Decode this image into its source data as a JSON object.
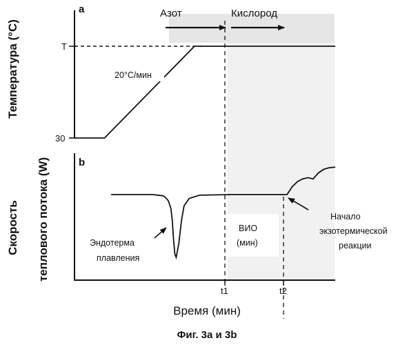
{
  "chart_data": [
    {
      "type": "line",
      "panel": "a",
      "ylabel": "Температура (°C)",
      "y_ticks": [
        "T",
        "30"
      ],
      "t_levels": {
        "T": 1,
        "30": 0
      },
      "gases": {
        "before": "Азот",
        "after": "Кислород"
      },
      "annotations": {
        "rate": "20°C/мин"
      },
      "series": [
        {
          "x": [
            0,
            0.115,
            0.46,
            1.0
          ],
          "y": [
            0,
            0,
            1,
            1
          ]
        }
      ]
    },
    {
      "type": "line",
      "panel": "b",
      "ylabel": "Скорость теплового потока (W)",
      "ylabel_lines": [
        "Скорость",
        "теплового потока (W)"
      ],
      "xlabel": "Время (мин)",
      "x_ticks": [
        "t1",
        "t2"
      ],
      "t_marks": {
        "t1": 0.605,
        "t2": 0.815
      },
      "annotations": {
        "endotherm": [
          "Эндотерма",
          "плавления"
        ],
        "oit": [
          "ВИО",
          "(мин)"
        ],
        "onset": [
          "Начало",
          "экзотермической",
          "реакции"
        ]
      },
      "series": [
        {
          "x": [
            0.14,
            0.3,
            0.34,
            0.35,
            0.36,
            0.37,
            0.375,
            0.38,
            0.385,
            0.39,
            0.4,
            0.41,
            0.42,
            0.44,
            0.48,
            0.6,
            0.8,
            0.815,
            0.835,
            0.855,
            0.875,
            0.895,
            0.915,
            0.935,
            0.955,
            0.975,
            1.0
          ],
          "y": [
            0.0,
            0.0,
            -0.02,
            -0.05,
            -0.1,
            -0.23,
            -0.42,
            -0.72,
            -0.95,
            -1.0,
            -0.78,
            -0.42,
            -0.18,
            -0.06,
            -0.01,
            0.0,
            0.0,
            0.0,
            0.2,
            0.33,
            0.4,
            0.43,
            0.4,
            0.55,
            0.64,
            0.68,
            0.7
          ]
        }
      ]
    }
  ],
  "caption": "Фиг. 3а и 3b"
}
